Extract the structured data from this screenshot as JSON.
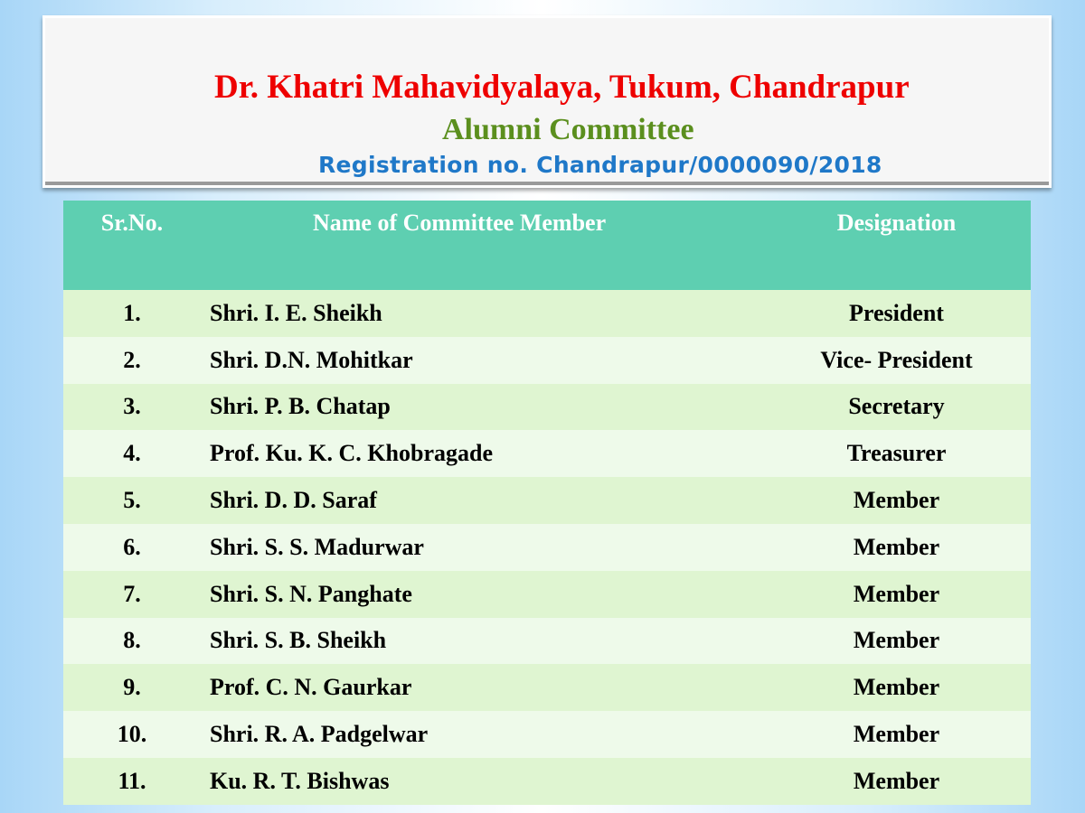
{
  "header": {
    "college": "Dr. Khatri Mahavidyalaya, Tukum, Chandrapur",
    "committee": "Alumni Committee",
    "registration": "Registration no. Chandrapur/0000090/2018"
  },
  "table": {
    "columns": [
      "Sr.No.",
      "Name of Committee Member",
      "Designation"
    ],
    "rows": [
      [
        "1.",
        "Shri. I. E. Sheikh",
        "President"
      ],
      [
        "2.",
        "Shri. D.N. Mohitkar",
        "Vice- President"
      ],
      [
        "3.",
        "Shri. P. B. Chatap",
        "Secretary"
      ],
      [
        "4.",
        "Prof. Ku. K. C. Khobragade",
        "Treasurer"
      ],
      [
        "5.",
        "Shri. D. D. Saraf",
        "Member"
      ],
      [
        "6.",
        "Shri. S. S. Madurwar",
        "Member"
      ],
      [
        "7.",
        "Shri. S. N. Panghate",
        "Member"
      ],
      [
        "8.",
        "Shri. S. B. Sheikh",
        "Member"
      ],
      [
        "9.",
        "Prof. C. N. Gaurkar",
        "Member"
      ],
      [
        "10.",
        "Shri. R. A. Padgelwar",
        "Member"
      ],
      [
        "11.",
        "Ku. R. T. Bishwas",
        "Member"
      ]
    ]
  },
  "colors": {
    "title": "#ee0000",
    "subtitle": "#5b8f1e",
    "registration": "#1f78c8",
    "header_bg": "#5ecfb1"
  }
}
